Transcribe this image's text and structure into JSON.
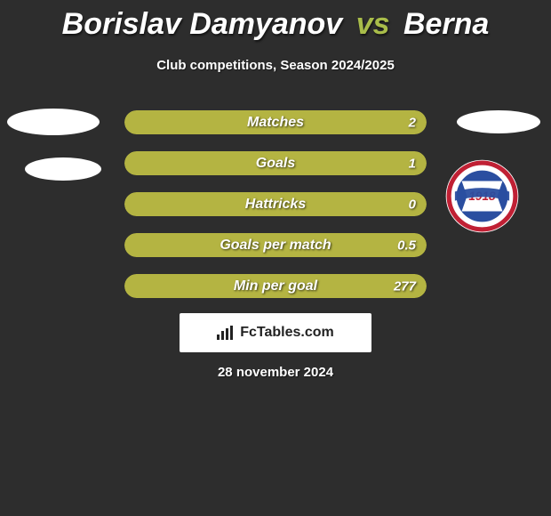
{
  "title": {
    "player1": "Borislav Damyanov",
    "separator": "vs",
    "player2": "Berna"
  },
  "subtitle": "Club competitions, Season 2024/2025",
  "bars": [
    {
      "label": "Matches",
      "left": "",
      "right": "2",
      "left_pct": 0,
      "right_pct": 100
    },
    {
      "label": "Goals",
      "left": "",
      "right": "1",
      "left_pct": 0,
      "right_pct": 100
    },
    {
      "label": "Hattricks",
      "left": "",
      "right": "0",
      "left_pct": 0,
      "right_pct": 100
    },
    {
      "label": "Goals per match",
      "left": "",
      "right": "0.5",
      "left_pct": 0,
      "right_pct": 100
    },
    {
      "label": "Min per goal",
      "left": "",
      "right": "277",
      "left_pct": 0,
      "right_pct": 100
    }
  ],
  "colors": {
    "background": "#2d2d2d",
    "player1_bar": "#6fa0c8",
    "player2_bar": "#b4b442",
    "accent": "#a9bd4a",
    "text": "#ffffff"
  },
  "brand": "FcTables.com",
  "date": "28 november 2024",
  "badge": {
    "outer": "#ffffff",
    "ring": "#c02034",
    "inner": "#2a4ea0",
    "banner": "#2a4ea0",
    "year": "1918"
  }
}
